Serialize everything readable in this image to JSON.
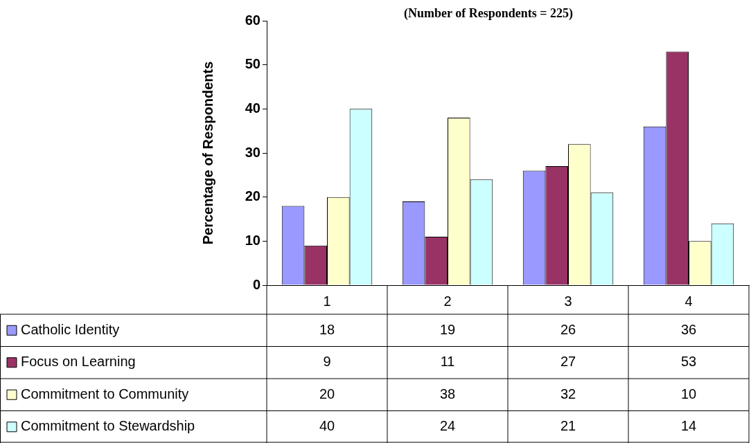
{
  "chart_data": {
    "type": "bar",
    "title": "(Number of Respondents = 225)",
    "ylabel": "Percentage of Respondents",
    "categories": [
      "1",
      "2",
      "3",
      "4"
    ],
    "series": [
      {
        "name": "Catholic Identity",
        "color": "#9999ff",
        "values": [
          18,
          19,
          26,
          36
        ]
      },
      {
        "name": "Focus on Learning",
        "color": "#993366",
        "values": [
          9,
          11,
          27,
          53
        ]
      },
      {
        "name": "Commitment to Community",
        "color": "#ffffcc",
        "values": [
          20,
          38,
          32,
          10
        ]
      },
      {
        "name": "Commitment to Stewardship",
        "color": "#ccffff",
        "values": [
          40,
          24,
          21,
          14
        ]
      }
    ],
    "ylim": [
      0,
      60
    ],
    "yticks": [
      0,
      10,
      20,
      30,
      40,
      50,
      60
    ],
    "grid": false,
    "legend": "bottom",
    "data_labels": true
  }
}
